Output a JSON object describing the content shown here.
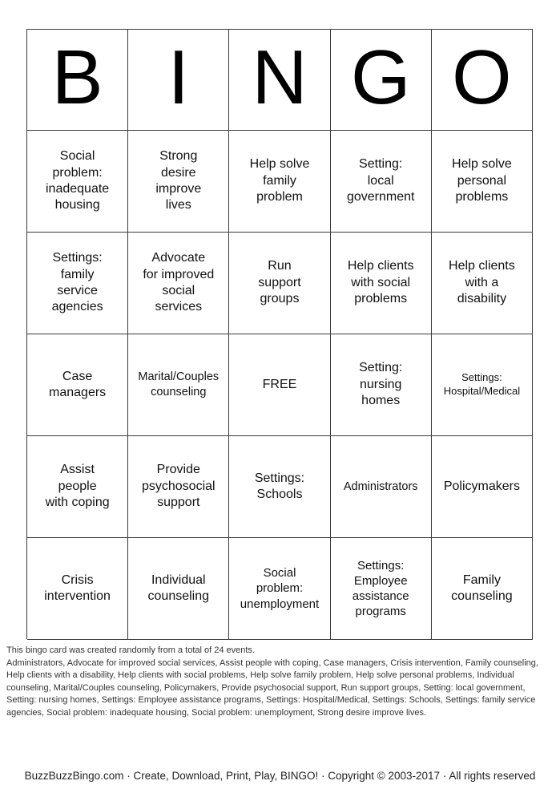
{
  "card": {
    "header_letters": [
      "B",
      "I",
      "N",
      "G",
      "O"
    ],
    "rows": [
      [
        "Social\nproblem:\ninadequate\nhousing",
        "Strong\ndesire\nimprove\nlives",
        "Help solve\nfamily\nproblem",
        "Setting:\nlocal\ngovernment",
        "Help solve\npersonal\nproblems"
      ],
      [
        "Settings:\nfamily\nservice\nagencies",
        "Advocate\nfor improved\nsocial\nservices",
        "Run\nsupport\ngroups",
        "Help clients\nwith social\nproblems",
        "Help clients\nwith a\ndisability"
      ],
      [
        "Case\nmanagers",
        "Marital/Couples\ncounseling",
        "FREE",
        "Setting:\nnursing\nhomes",
        "Settings:\nHospital/Medical"
      ],
      [
        "Assist\npeople\nwith coping",
        "Provide\npsychosocial\nsupport",
        "Settings:\nSchools",
        "Administrators",
        "Policymakers"
      ],
      [
        "Crisis\nintervention",
        "Individual\ncounseling",
        "Social\nproblem:\nunemployment",
        "Settings:\nEmployee\nassistance\nprograms",
        "Family\ncounseling"
      ]
    ]
  },
  "footer": {
    "note": "This bingo card was created randomly from a total of 24 events.",
    "events": "Administrators, Advocate for improved social services, Assist people with coping, Case managers, Crisis intervention, Family counseling, Help clients with a disability, Help clients with social problems, Help solve family problem, Help solve personal problems, Individual counseling, Marital/Couples counseling, Policymakers, Provide psychosocial support, Run support groups, Setting: local government, Setting: nursing homes, Settings: Employee assistance programs, Settings: Hospital/Medical, Settings: Schools, Settings: family service agencies, Social problem: inadequate housing, Social problem: unemployment, Strong desire improve lives.",
    "copyright": "BuzzBuzzBingo.com · Create, Download, Print, Play, BINGO! · Copyright © 2003-2017 · All rights reserved"
  },
  "colors": {
    "grid_line": "#3a3a3a",
    "text": "#111111"
  }
}
